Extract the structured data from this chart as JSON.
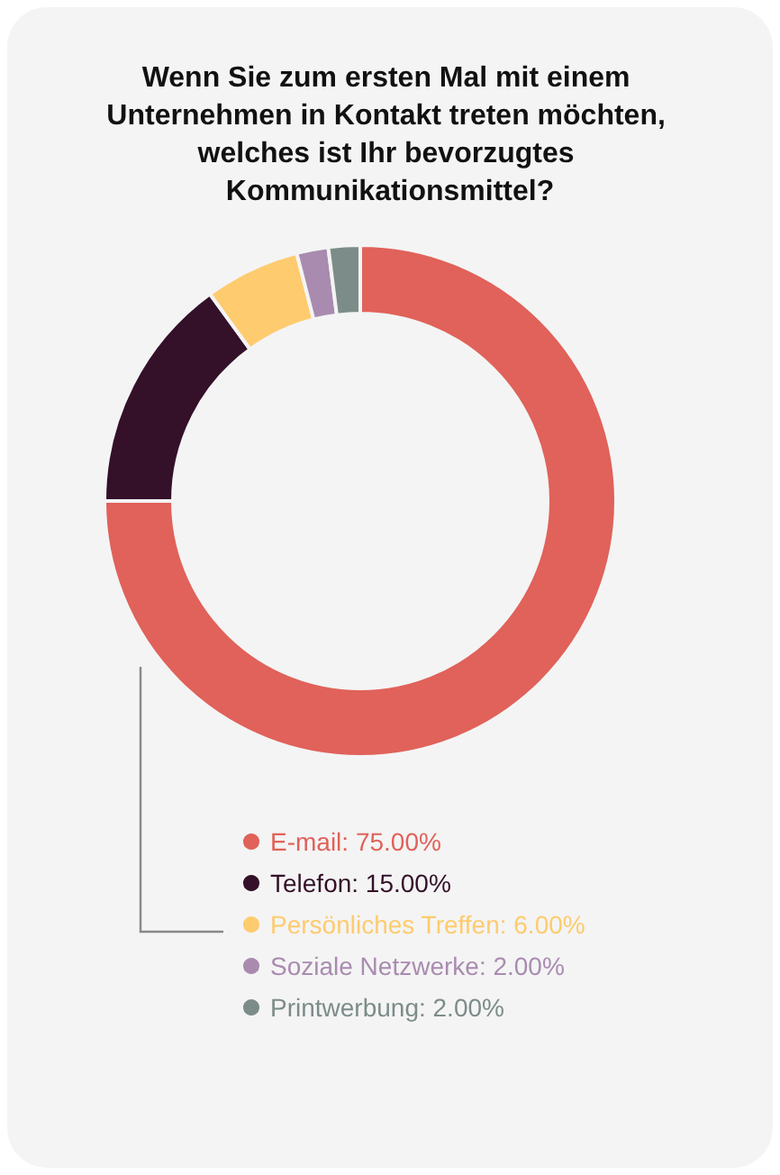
{
  "chart_data": {
    "type": "donut",
    "title": "Wenn Sie zum ersten Mal mit einem Unternehmen in Kontakt treten möchten, welches ist Ihr bevorzugtes Kommunikationsmittel?",
    "categories": [
      "E-mail",
      "Telefon",
      "Persönliches Treffen",
      "Soziale Netzwerke",
      "Printwerbung"
    ],
    "values": [
      75,
      15,
      6,
      2,
      2
    ],
    "value_labels": [
      "75.00%",
      "15.00%",
      "6.00%",
      "2.00%",
      "2.00%"
    ],
    "colors": [
      "#e0625a",
      "#341029",
      "#fecb6e",
      "#a98bb0",
      "#7c8c89"
    ],
    "legend": "bottom"
  }
}
